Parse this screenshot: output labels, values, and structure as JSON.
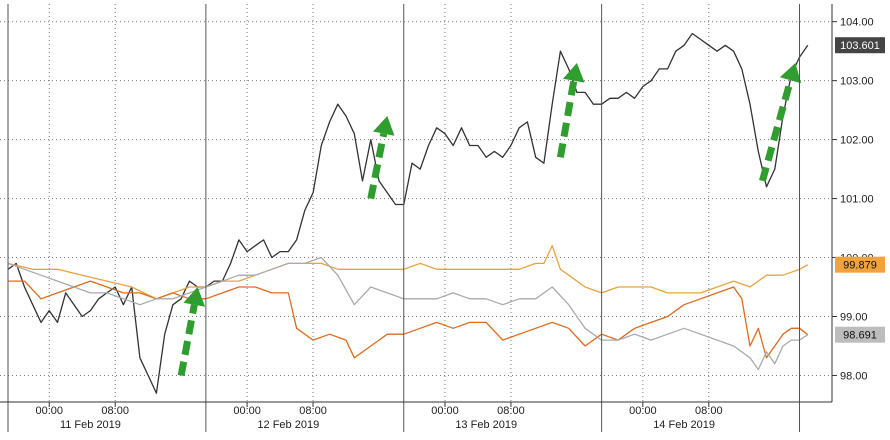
{
  "chart_data": {
    "type": "line",
    "title": "",
    "xlabel": "",
    "ylabel": "",
    "ylim": [
      97.55,
      104.3
    ],
    "y_ticks": [
      "98.00",
      "99.00",
      "100.00",
      "101.00",
      "102.00",
      "103.00",
      "104.00"
    ],
    "grid": true,
    "time_ticks": [
      "00:00",
      "08:00",
      "00:00",
      "08:00",
      "00:00",
      "08:00",
      "00:00",
      "08:00"
    ],
    "date_labels": [
      "11 Feb 2019",
      "12 Feb 2019",
      "13 Feb 2019",
      "14 Feb 2019"
    ],
    "x_unit": "hours since 10 Feb 2019 19:00",
    "xlim": [
      0,
      98
    ],
    "series": [
      {
        "color": "#333333",
        "last_label": "103.601",
        "last_label_color": "#ffffff",
        "last_label_bg": "#444444",
        "points": [
          [
            0,
            99.8
          ],
          [
            1,
            99.9
          ],
          [
            2,
            99.5
          ],
          [
            3,
            99.2
          ],
          [
            4,
            98.9
          ],
          [
            5,
            99.1
          ],
          [
            6,
            98.9
          ],
          [
            7,
            99.4
          ],
          [
            8,
            99.2
          ],
          [
            9,
            99.0
          ],
          [
            10,
            99.1
          ],
          [
            11,
            99.3
          ],
          [
            12,
            99.4
          ],
          [
            13,
            99.5
          ],
          [
            14,
            99.2
          ],
          [
            15,
            99.5
          ],
          [
            16,
            98.3
          ],
          [
            17,
            98.0
          ],
          [
            18,
            97.7
          ],
          [
            19,
            98.7
          ],
          [
            20,
            99.2
          ],
          [
            21,
            99.3
          ],
          [
            22,
            99.6
          ],
          [
            23,
            99.5
          ],
          [
            24,
            99.5
          ],
          [
            25,
            99.6
          ],
          [
            26,
            99.6
          ],
          [
            27,
            99.9
          ],
          [
            28,
            100.3
          ],
          [
            29,
            100.1
          ],
          [
            30,
            100.2
          ],
          [
            31,
            100.3
          ],
          [
            32,
            100.0
          ],
          [
            33,
            100.1
          ],
          [
            34,
            100.1
          ],
          [
            35,
            100.3
          ],
          [
            36,
            100.8
          ],
          [
            37,
            101.1
          ],
          [
            38,
            101.9
          ],
          [
            39,
            102.3
          ],
          [
            40,
            102.6
          ],
          [
            41,
            102.4
          ],
          [
            42,
            102.1
          ],
          [
            43,
            101.3
          ],
          [
            44,
            102.0
          ],
          [
            45,
            101.3
          ],
          [
            46,
            101.1
          ],
          [
            47,
            100.9
          ],
          [
            48,
            100.9
          ],
          [
            49,
            101.6
          ],
          [
            50,
            101.5
          ],
          [
            51,
            101.9
          ],
          [
            52,
            102.2
          ],
          [
            53,
            102.1
          ],
          [
            54,
            101.9
          ],
          [
            55,
            102.2
          ],
          [
            56,
            101.9
          ],
          [
            57,
            101.9
          ],
          [
            58,
            101.7
          ],
          [
            59,
            101.8
          ],
          [
            60,
            101.7
          ],
          [
            61,
            101.9
          ],
          [
            62,
            102.2
          ],
          [
            63,
            102.3
          ],
          [
            64,
            101.7
          ],
          [
            65,
            101.6
          ],
          [
            66,
            102.6
          ],
          [
            67,
            103.5
          ],
          [
            68,
            103.2
          ],
          [
            69,
            102.8
          ],
          [
            70,
            102.8
          ],
          [
            71,
            102.6
          ],
          [
            72,
            102.6
          ],
          [
            73,
            102.7
          ],
          [
            74,
            102.7
          ],
          [
            75,
            102.8
          ],
          [
            76,
            102.7
          ],
          [
            77,
            102.9
          ],
          [
            78,
            103.0
          ],
          [
            79,
            103.2
          ],
          [
            80,
            103.2
          ],
          [
            81,
            103.5
          ],
          [
            82,
            103.6
          ],
          [
            83,
            103.8
          ],
          [
            84,
            103.7
          ],
          [
            85,
            103.6
          ],
          [
            86,
            103.5
          ],
          [
            87,
            103.6
          ],
          [
            88,
            103.5
          ],
          [
            89,
            103.2
          ],
          [
            90,
            102.6
          ],
          [
            91,
            101.8
          ],
          [
            92,
            101.2
          ],
          [
            93,
            101.5
          ],
          [
            94,
            102.4
          ],
          [
            95,
            103.1
          ],
          [
            96,
            103.4
          ],
          [
            97,
            103.601
          ]
        ]
      },
      {
        "color": "#e8a33c",
        "last_label": "99.879",
        "last_label_color": "#111111",
        "last_label_bg": "#f2a23a",
        "points": [
          [
            0,
            99.9
          ],
          [
            3,
            99.8
          ],
          [
            6,
            99.8
          ],
          [
            9,
            99.7
          ],
          [
            12,
            99.6
          ],
          [
            15,
            99.5
          ],
          [
            18,
            99.3
          ],
          [
            20,
            99.4
          ],
          [
            22,
            99.5
          ],
          [
            24,
            99.5
          ],
          [
            26,
            99.6
          ],
          [
            28,
            99.6
          ],
          [
            30,
            99.7
          ],
          [
            32,
            99.8
          ],
          [
            34,
            99.9
          ],
          [
            36,
            99.9
          ],
          [
            38,
            99.9
          ],
          [
            40,
            99.8
          ],
          [
            42,
            99.8
          ],
          [
            44,
            99.8
          ],
          [
            46,
            99.8
          ],
          [
            48,
            99.8
          ],
          [
            50,
            99.9
          ],
          [
            52,
            99.8
          ],
          [
            54,
            99.8
          ],
          [
            56,
            99.8
          ],
          [
            58,
            99.8
          ],
          [
            60,
            99.8
          ],
          [
            62,
            99.8
          ],
          [
            64,
            99.9
          ],
          [
            65,
            99.9
          ],
          [
            66,
            100.2
          ],
          [
            67,
            99.8
          ],
          [
            68,
            99.7
          ],
          [
            70,
            99.5
          ],
          [
            72,
            99.4
          ],
          [
            74,
            99.5
          ],
          [
            76,
            99.5
          ],
          [
            78,
            99.5
          ],
          [
            80,
            99.4
          ],
          [
            82,
            99.4
          ],
          [
            84,
            99.4
          ],
          [
            86,
            99.5
          ],
          [
            88,
            99.6
          ],
          [
            90,
            99.5
          ],
          [
            92,
            99.7
          ],
          [
            94,
            99.7
          ],
          [
            96,
            99.8
          ],
          [
            97,
            99.879
          ]
        ]
      },
      {
        "color": "#e06a1e",
        "last_label": "",
        "points": [
          [
            0,
            99.6
          ],
          [
            2,
            99.6
          ],
          [
            4,
            99.3
          ],
          [
            6,
            99.4
          ],
          [
            8,
            99.5
          ],
          [
            10,
            99.6
          ],
          [
            12,
            99.5
          ],
          [
            14,
            99.4
          ],
          [
            16,
            99.4
          ],
          [
            18,
            99.3
          ],
          [
            20,
            99.4
          ],
          [
            22,
            99.3
          ],
          [
            24,
            99.3
          ],
          [
            26,
            99.4
          ],
          [
            28,
            99.5
          ],
          [
            30,
            99.5
          ],
          [
            32,
            99.4
          ],
          [
            34,
            99.4
          ],
          [
            35,
            98.8
          ],
          [
            37,
            98.6
          ],
          [
            39,
            98.7
          ],
          [
            41,
            98.6
          ],
          [
            42,
            98.3
          ],
          [
            44,
            98.5
          ],
          [
            46,
            98.7
          ],
          [
            48,
            98.7
          ],
          [
            50,
            98.8
          ],
          [
            52,
            98.9
          ],
          [
            54,
            98.8
          ],
          [
            56,
            98.9
          ],
          [
            58,
            98.9
          ],
          [
            60,
            98.6
          ],
          [
            62,
            98.7
          ],
          [
            64,
            98.8
          ],
          [
            66,
            98.9
          ],
          [
            68,
            98.8
          ],
          [
            70,
            98.5
          ],
          [
            72,
            98.7
          ],
          [
            74,
            98.6
          ],
          [
            76,
            98.8
          ],
          [
            78,
            98.9
          ],
          [
            80,
            99.0
          ],
          [
            82,
            99.2
          ],
          [
            84,
            99.3
          ],
          [
            86,
            99.4
          ],
          [
            88,
            99.5
          ],
          [
            89,
            99.3
          ],
          [
            90,
            98.5
          ],
          [
            91,
            98.8
          ],
          [
            92,
            98.3
          ],
          [
            93,
            98.5
          ],
          [
            94,
            98.7
          ],
          [
            95,
            98.8
          ],
          [
            96,
            98.8
          ],
          [
            97,
            98.691
          ]
        ]
      },
      {
        "color": "#aaaaaa",
        "last_label": "98.691",
        "last_label_color": "#111111",
        "last_label_bg": "#bdbdbd",
        "points": [
          [
            0,
            99.9
          ],
          [
            2,
            99.8
          ],
          [
            4,
            99.7
          ],
          [
            6,
            99.6
          ],
          [
            8,
            99.5
          ],
          [
            10,
            99.4
          ],
          [
            12,
            99.4
          ],
          [
            14,
            99.3
          ],
          [
            16,
            99.2
          ],
          [
            18,
            99.3
          ],
          [
            20,
            99.3
          ],
          [
            22,
            99.4
          ],
          [
            24,
            99.5
          ],
          [
            26,
            99.6
          ],
          [
            28,
            99.7
          ],
          [
            30,
            99.7
          ],
          [
            32,
            99.8
          ],
          [
            34,
            99.9
          ],
          [
            36,
            99.9
          ],
          [
            38,
            100.0
          ],
          [
            40,
            99.7
          ],
          [
            42,
            99.2
          ],
          [
            44,
            99.5
          ],
          [
            46,
            99.4
          ],
          [
            48,
            99.3
          ],
          [
            50,
            99.3
          ],
          [
            52,
            99.3
          ],
          [
            54,
            99.4
          ],
          [
            56,
            99.3
          ],
          [
            58,
            99.3
          ],
          [
            60,
            99.2
          ],
          [
            62,
            99.3
          ],
          [
            64,
            99.3
          ],
          [
            66,
            99.5
          ],
          [
            68,
            99.2
          ],
          [
            70,
            98.8
          ],
          [
            72,
            98.6
          ],
          [
            74,
            98.6
          ],
          [
            76,
            98.7
          ],
          [
            78,
            98.6
          ],
          [
            80,
            98.7
          ],
          [
            82,
            98.8
          ],
          [
            84,
            98.7
          ],
          [
            86,
            98.6
          ],
          [
            88,
            98.5
          ],
          [
            90,
            98.3
          ],
          [
            91,
            98.1
          ],
          [
            92,
            98.4
          ],
          [
            93,
            98.2
          ],
          [
            94,
            98.5
          ],
          [
            95,
            98.6
          ],
          [
            96,
            98.6
          ],
          [
            97,
            98.691
          ]
        ]
      }
    ],
    "annotations": [
      {
        "type": "arrow",
        "color": "#2f9e2f",
        "x_from": 21,
        "y_from": 98.0,
        "x_to": 23,
        "y_to": 99.5
      },
      {
        "type": "arrow",
        "color": "#2f9e2f",
        "x_from": 44,
        "y_from": 101.0,
        "x_to": 46,
        "y_to": 102.4
      },
      {
        "type": "arrow",
        "color": "#2f9e2f",
        "x_from": 67,
        "y_from": 101.7,
        "x_to": 69,
        "y_to": 103.3
      },
      {
        "type": "arrow",
        "color": "#2f9e2f",
        "x_from": 91.5,
        "y_from": 101.3,
        "x_to": 95.5,
        "y_to": 103.3
      }
    ]
  }
}
